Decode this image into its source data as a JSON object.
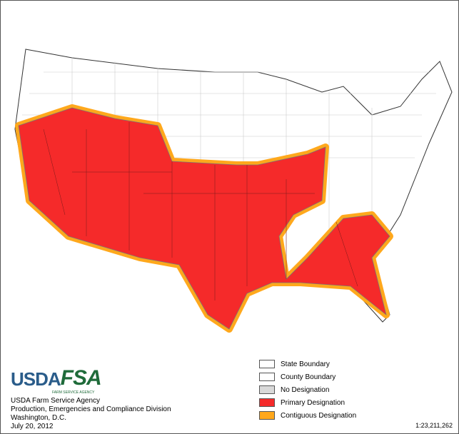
{
  "logo": {
    "usda": "USDA",
    "fsa": "FSA",
    "subtitle": "FARM SERVICE AGENCY"
  },
  "agency": {
    "lines": [
      "USDA Farm Service Agency",
      "Production, Emergencies and Compliance Division",
      "Washington, D.C.",
      "July 20, 2012"
    ]
  },
  "legend": {
    "items": [
      {
        "label": "State Boundary",
        "color": "#ffffff"
      },
      {
        "label": "County Boundary",
        "color": "#ffffff"
      },
      {
        "label": "No Designation",
        "color": "#d9d9d9"
      },
      {
        "label": "Primary Designation",
        "color": "#f52a2a"
      },
      {
        "label": "Contiguous Designation",
        "color": "#ffa81c"
      }
    ]
  },
  "scale": "1:23,211,262"
}
